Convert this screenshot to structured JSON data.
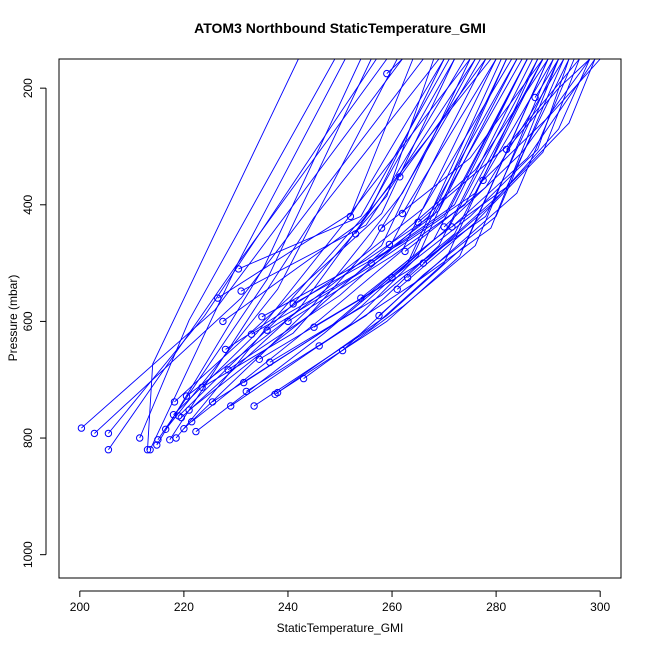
{
  "chart_data": {
    "type": "line",
    "title": "ATOM3 Northbound StaticTemperature_GMI",
    "xlabel": "StaticTemperature_GMI",
    "ylabel": "Pressure (mbar)",
    "xlim": [
      196,
      304
    ],
    "ylim": [
      1040,
      150
    ],
    "y_reversed": true,
    "xticks": [
      200,
      220,
      240,
      260,
      280,
      300
    ],
    "yticks": [
      200,
      400,
      600,
      800,
      1000
    ],
    "grid": false,
    "legend": "none",
    "series_color": "#0000ff",
    "series": [
      {
        "points": [
          [
            200.3,
            783
          ],
          [
            226,
            580
          ],
          [
            262,
            150
          ]
        ]
      },
      {
        "points": [
          [
            202.8,
            792
          ],
          [
            231,
            560
          ],
          [
            266,
            150
          ]
        ]
      },
      {
        "points": [
          [
            205.5,
            792
          ],
          [
            224,
            590
          ],
          [
            257,
            150
          ]
        ]
      },
      {
        "points": [
          [
            205.5,
            820
          ],
          [
            230,
            505
          ],
          [
            259,
            150
          ]
        ]
      },
      {
        "points": [
          [
            211.5,
            800
          ],
          [
            221,
            598
          ],
          [
            249,
            150
          ]
        ]
      },
      {
        "points": [
          [
            213,
            820
          ],
          [
            214,
            673
          ],
          [
            242,
            150
          ]
        ]
      },
      {
        "points": [
          [
            213.5,
            820
          ],
          [
            230.5,
            498
          ],
          [
            251,
            150
          ]
        ]
      },
      {
        "points": [
          [
            214.8,
            812
          ],
          [
            235.5,
            505
          ],
          [
            254,
            150
          ]
        ]
      },
      {
        "points": [
          [
            215,
            803
          ],
          [
            236,
            528
          ],
          [
            256,
            150
          ]
        ]
      },
      {
        "points": [
          [
            216.5,
            785
          ],
          [
            238,
            545
          ],
          [
            261,
            150
          ]
        ]
      },
      {
        "points": [
          [
            217.3,
            803
          ],
          [
            245,
            422
          ],
          [
            269,
            150
          ]
        ]
      },
      {
        "points": [
          [
            218,
            760
          ],
          [
            234,
            620
          ],
          [
            252,
            418
          ],
          [
            264,
            150
          ]
        ]
      },
      {
        "points": [
          [
            218.5,
            800
          ],
          [
            236,
            610
          ],
          [
            256,
            405
          ],
          [
            270,
            150
          ]
        ]
      },
      {
        "points": [
          [
            218.2,
            738
          ],
          [
            237,
            585
          ],
          [
            258,
            415
          ],
          [
            272,
            150
          ]
        ]
      },
      {
        "points": [
          [
            219,
            762
          ],
          [
            241,
            570
          ],
          [
            259,
            385
          ],
          [
            268,
            150
          ]
        ]
      },
      {
        "points": [
          [
            219.5,
            765
          ],
          [
            242,
            580
          ],
          [
            260,
            360
          ],
          [
            274,
            150
          ]
        ]
      },
      {
        "points": [
          [
            220,
            784
          ],
          [
            245,
            570
          ],
          [
            262,
            380
          ],
          [
            276,
            150
          ]
        ]
      },
      {
        "points": [
          [
            220.5,
            728
          ],
          [
            238,
            610
          ],
          [
            258,
            470
          ],
          [
            275,
            150
          ]
        ]
      },
      {
        "points": [
          [
            221,
            752
          ],
          [
            244,
            590
          ],
          [
            260,
            465
          ],
          [
            278,
            150
          ]
        ]
      },
      {
        "points": [
          [
            221.5,
            772
          ],
          [
            246,
            598
          ],
          [
            262,
            478
          ],
          [
            280,
            150
          ]
        ]
      },
      {
        "points": [
          [
            222.3,
            789
          ],
          [
            247,
            620
          ],
          [
            263,
            500
          ],
          [
            281,
            150
          ]
        ]
      },
      {
        "points": [
          [
            223.5,
            713
          ],
          [
            241,
            620
          ],
          [
            256,
            470
          ],
          [
            277,
            150
          ]
        ]
      },
      {
        "points": [
          [
            225.5,
            738
          ],
          [
            248,
            610
          ],
          [
            264,
            488
          ],
          [
            282,
            150
          ]
        ]
      },
      {
        "points": [
          [
            226.5,
            560
          ],
          [
            252,
            415
          ],
          [
            275,
            150
          ]
        ]
      },
      {
        "points": [
          [
            227.5,
            600
          ],
          [
            254,
            430
          ],
          [
            279,
            150
          ]
        ]
      },
      {
        "points": [
          [
            228,
            648
          ],
          [
            248,
            532
          ],
          [
            266,
            406
          ],
          [
            283,
            150
          ]
        ]
      },
      {
        "points": [
          [
            228.5,
            683
          ],
          [
            250,
            555
          ],
          [
            267,
            420
          ],
          [
            284,
            150
          ]
        ]
      },
      {
        "points": [
          [
            229,
            745
          ],
          [
            252,
            605
          ],
          [
            265,
            488
          ],
          [
            282,
            150
          ]
        ]
      },
      {
        "points": [
          [
            230.5,
            510
          ],
          [
            254,
            420
          ],
          [
            271,
            150
          ]
        ]
      },
      {
        "points": [
          [
            231,
            548
          ],
          [
            255,
            435
          ],
          [
            276,
            150
          ]
        ]
      },
      {
        "points": [
          [
            231.5,
            705
          ],
          [
            254,
            575
          ],
          [
            268,
            460
          ],
          [
            286,
            150
          ]
        ]
      },
      {
        "points": [
          [
            232,
            720
          ],
          [
            255,
            590
          ],
          [
            269,
            470
          ],
          [
            287,
            150
          ]
        ]
      },
      {
        "points": [
          [
            233,
            622
          ],
          [
            253,
            520
          ],
          [
            268,
            418
          ],
          [
            285,
            150
          ]
        ]
      },
      {
        "points": [
          [
            233.5,
            745
          ],
          [
            256,
            612
          ],
          [
            270,
            500
          ],
          [
            288,
            150
          ]
        ]
      },
      {
        "points": [
          [
            234.5,
            665
          ],
          [
            257,
            545
          ],
          [
            271,
            438
          ],
          [
            288,
            150
          ]
        ]
      },
      {
        "points": [
          [
            235,
            592
          ],
          [
            255,
            495
          ],
          [
            269,
            410
          ],
          [
            284,
            150
          ]
        ]
      },
      {
        "points": [
          [
            236,
            615
          ],
          [
            256,
            505
          ],
          [
            270,
            420
          ],
          [
            286,
            150
          ]
        ]
      },
      {
        "points": [
          [
            236.5,
            670
          ],
          [
            258,
            555
          ],
          [
            272,
            450
          ],
          [
            289,
            150
          ]
        ]
      },
      {
        "points": [
          [
            237.5,
            725
          ],
          [
            259,
            600
          ],
          [
            273,
            488
          ],
          [
            290,
            150
          ]
        ]
      },
      {
        "points": [
          [
            238,
            722
          ],
          [
            259,
            590
          ],
          [
            274,
            470
          ],
          [
            290,
            150
          ]
        ]
      },
      {
        "points": [
          [
            240,
            600
          ],
          [
            260,
            488
          ],
          [
            274,
            400
          ],
          [
            289,
            150
          ]
        ]
      },
      {
        "points": [
          [
            241,
            570
          ],
          [
            262,
            465
          ],
          [
            276,
            380
          ],
          [
            291,
            150
          ]
        ]
      },
      {
        "points": [
          [
            243,
            698
          ],
          [
            262,
            575
          ],
          [
            276,
            470
          ],
          [
            291,
            150
          ]
        ]
      },
      {
        "points": [
          [
            245,
            610
          ],
          [
            264,
            508
          ],
          [
            278,
            420
          ],
          [
            292,
            150
          ]
        ]
      },
      {
        "points": [
          [
            246,
            642
          ],
          [
            265,
            530
          ],
          [
            279,
            440
          ],
          [
            292,
            150
          ]
        ]
      },
      {
        "points": [
          [
            250.5,
            650
          ],
          [
            266,
            520
          ],
          [
            280,
            420
          ],
          [
            293,
            150
          ]
        ]
      },
      {
        "points": [
          [
            252,
            420
          ],
          [
            270,
            150
          ]
        ]
      },
      {
        "points": [
          [
            253,
            450
          ],
          [
            272,
            150
          ]
        ]
      },
      {
        "points": [
          [
            254,
            560
          ],
          [
            268,
            460
          ],
          [
            282,
            370
          ],
          [
            294,
            150
          ]
        ]
      },
      {
        "points": [
          [
            256,
            500
          ],
          [
            272,
            400
          ],
          [
            286,
            150
          ]
        ]
      },
      {
        "points": [
          [
            257.5,
            590
          ],
          [
            270,
            490
          ],
          [
            284,
            380
          ],
          [
            295,
            150
          ]
        ]
      },
      {
        "points": [
          [
            258,
            440
          ],
          [
            275,
            320
          ],
          [
            289,
            150
          ]
        ]
      },
      {
        "points": [
          [
            259,
            175
          ],
          [
            262,
            150
          ]
        ]
      },
      {
        "points": [
          [
            259.5,
            468
          ],
          [
            276,
            340
          ],
          [
            290,
            150
          ]
        ]
      },
      {
        "points": [
          [
            260,
            525
          ],
          [
            275,
            420
          ],
          [
            288,
            305
          ],
          [
            294,
            150
          ]
        ]
      },
      {
        "points": [
          [
            261,
            545
          ],
          [
            276,
            430
          ],
          [
            289,
            310
          ],
          [
            296,
            150
          ]
        ]
      },
      {
        "points": [
          [
            261.5,
            352
          ],
          [
            278,
            150
          ]
        ]
      },
      {
        "points": [
          [
            262,
            415
          ],
          [
            280,
            150
          ]
        ]
      },
      {
        "points": [
          [
            262.5,
            480
          ],
          [
            278,
            370
          ],
          [
            293,
            150
          ]
        ]
      },
      {
        "points": [
          [
            263,
            525
          ],
          [
            279,
            400
          ],
          [
            292,
            270
          ],
          [
            298,
            150
          ]
        ]
      },
      {
        "points": [
          [
            265,
            430
          ],
          [
            282,
            300
          ],
          [
            296,
            150
          ]
        ]
      },
      {
        "points": [
          [
            266,
            500
          ],
          [
            281,
            380
          ],
          [
            294,
            260
          ],
          [
            299,
            150
          ]
        ]
      },
      {
        "points": [
          [
            270,
            438
          ],
          [
            285,
            310
          ],
          [
            298,
            150
          ]
        ]
      },
      {
        "points": [
          [
            271.5,
            438
          ],
          [
            286,
            320
          ],
          [
            299,
            150
          ]
        ]
      },
      {
        "points": [
          [
            277.5,
            358
          ],
          [
            290,
            250
          ],
          [
            300,
            150
          ]
        ]
      },
      {
        "points": [
          [
            282,
            305
          ],
          [
            292,
            200
          ],
          [
            298,
            150
          ]
        ]
      },
      {
        "points": [
          [
            287.5,
            216
          ],
          [
            292,
            150
          ]
        ]
      }
    ]
  }
}
